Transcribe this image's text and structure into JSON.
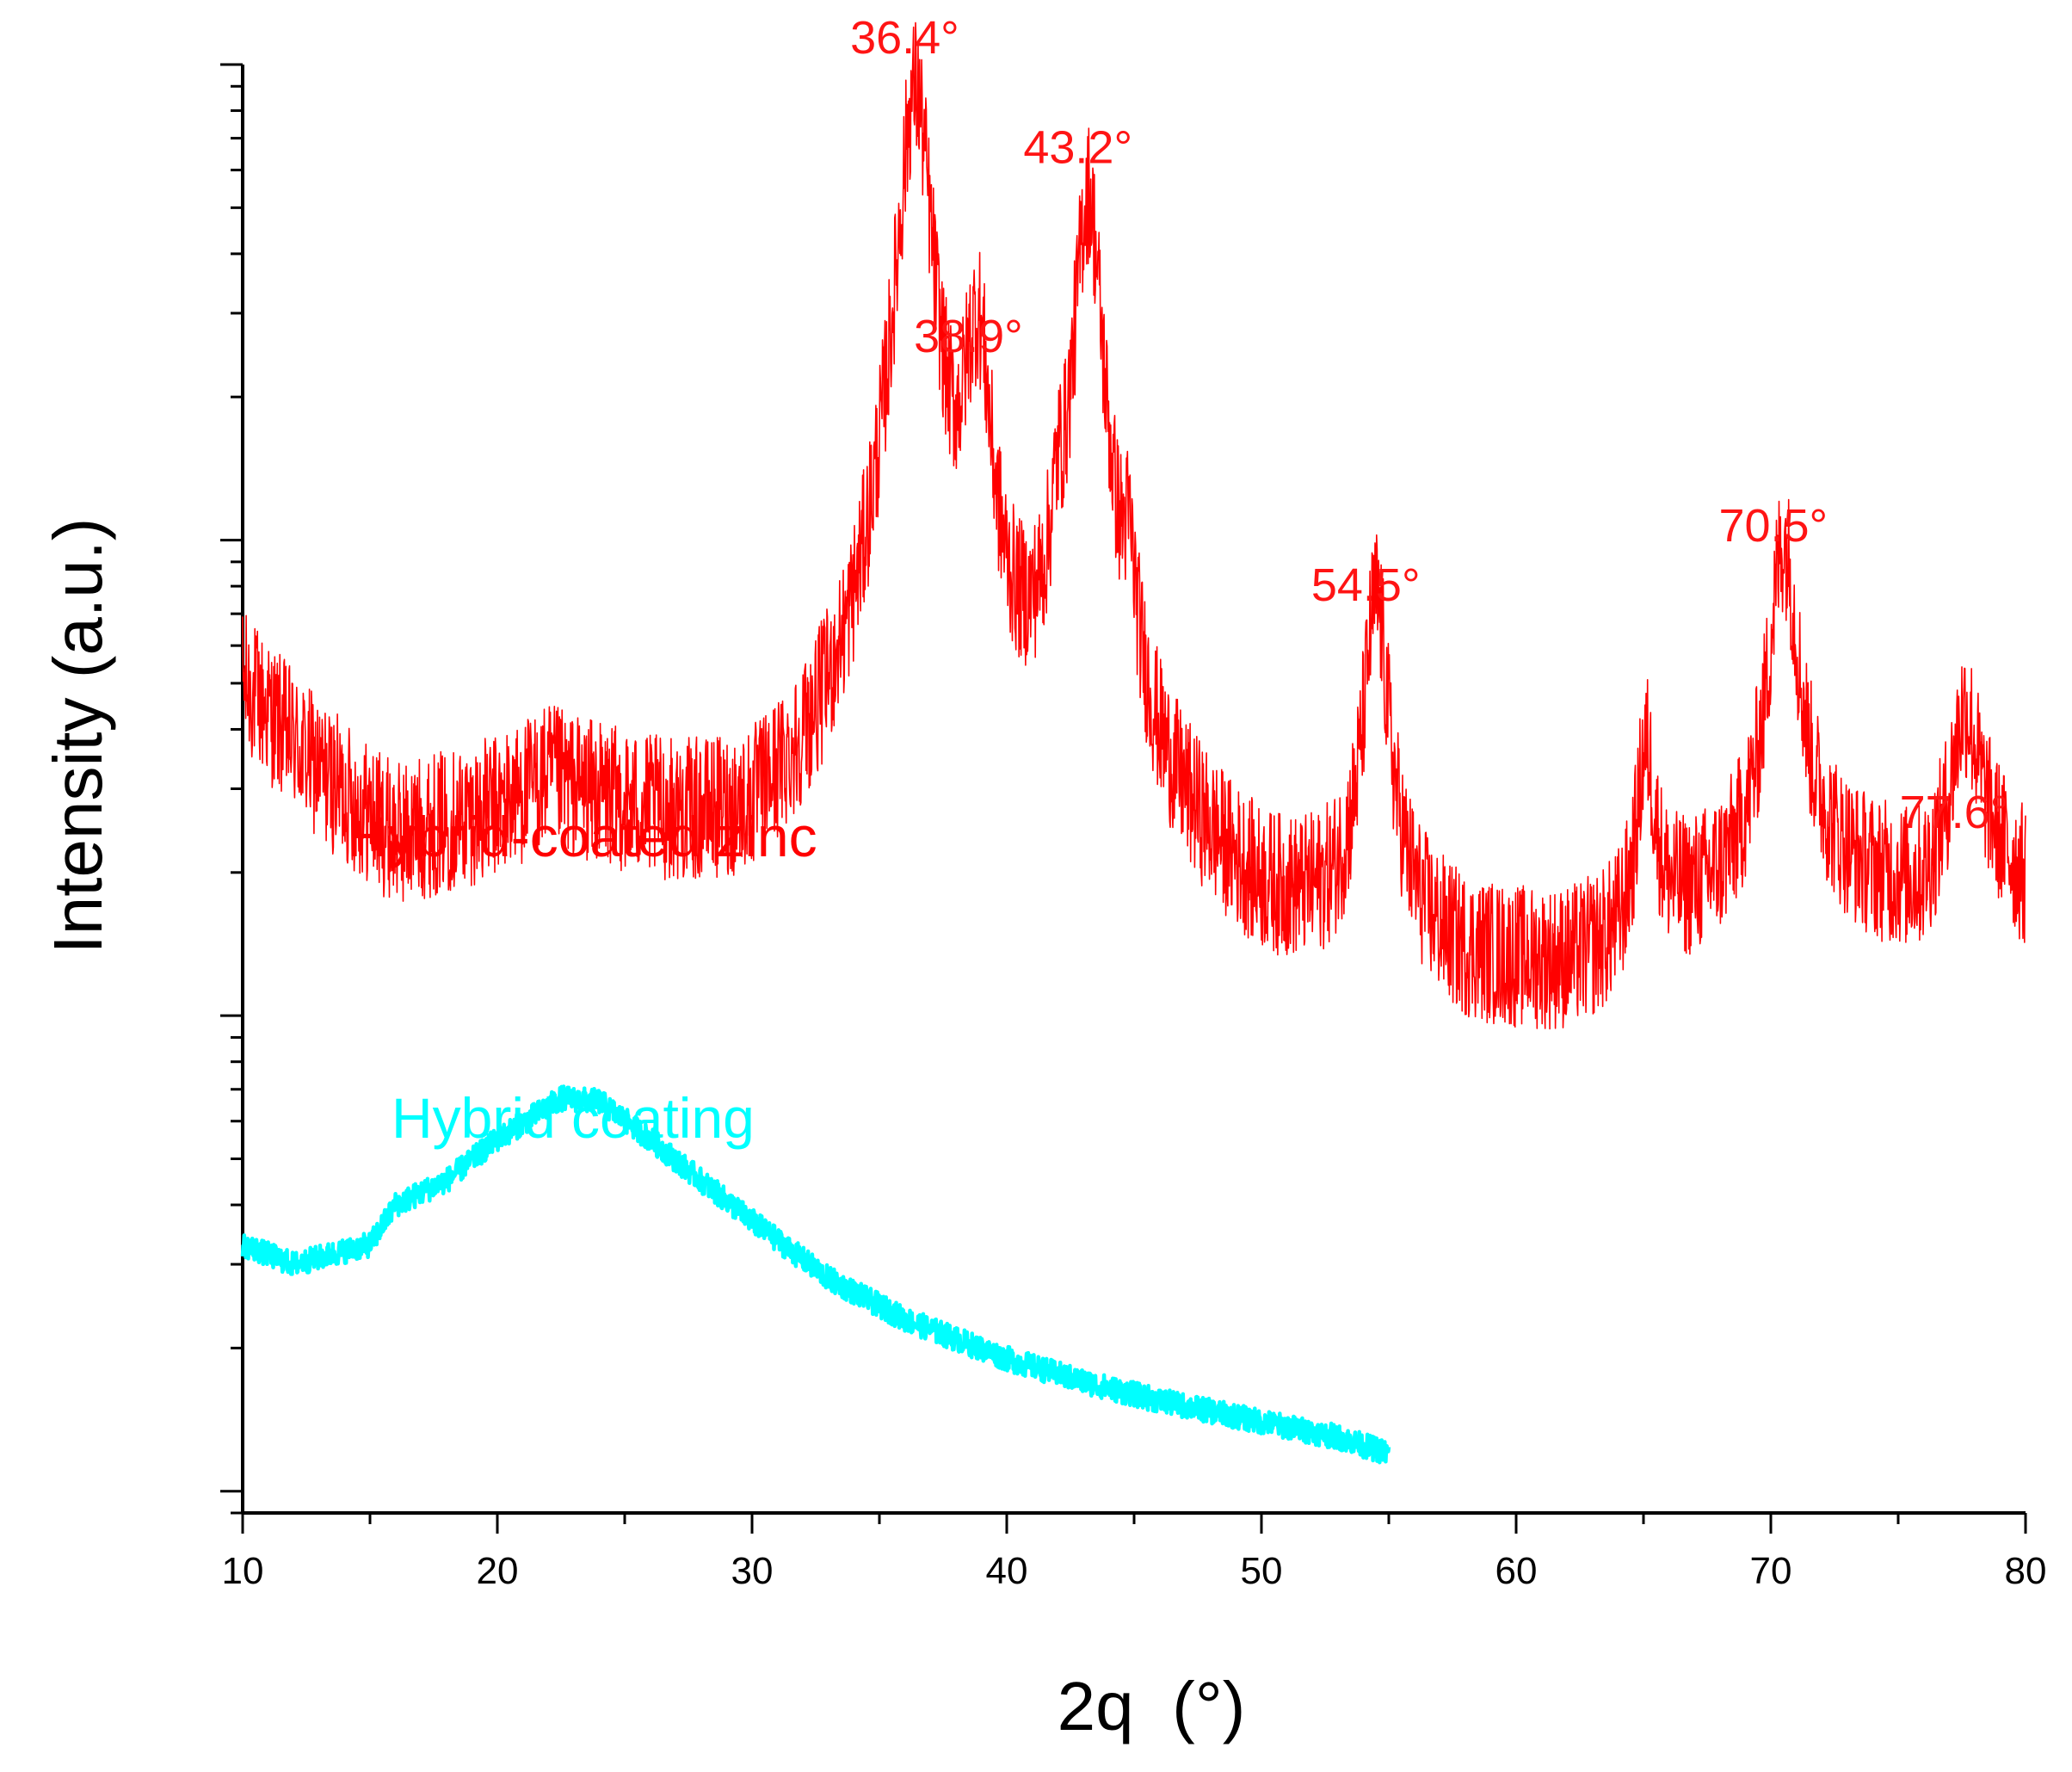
{
  "chart_data": {
    "type": "line",
    "title": "",
    "xlabel": "2q  (°)",
    "ylabel": "Intensity (a.u.)",
    "y_scale": "log",
    "xlim": [
      10,
      80
    ],
    "ylim": [
      0.09,
      100
    ],
    "x_ticks": [
      "10",
      "20",
      "30",
      "40",
      "50",
      "60",
      "70",
      "80"
    ],
    "y_tick_labels": "none",
    "series": [
      {
        "name": "Hybrid-coated zinc",
        "color": "#ff0000",
        "x_range": [
          10,
          80
        ],
        "baseline": [
          [
            10,
            5.0
          ],
          [
            13,
            3.2
          ],
          [
            16,
            2.3
          ],
          [
            20,
            2.6
          ],
          [
            22,
            3.0
          ],
          [
            26,
            2.4
          ],
          [
            30,
            2.0
          ],
          [
            34,
            2.5
          ],
          [
            35,
            2.9
          ],
          [
            38,
            3.2
          ],
          [
            40,
            2.8
          ],
          [
            44,
            2.6
          ],
          [
            46,
            1.9
          ],
          [
            50,
            1.4
          ],
          [
            55,
            1.35
          ],
          [
            58,
            1.15
          ],
          [
            62,
            1.15
          ],
          [
            64,
            1.25
          ],
          [
            66,
            1.5
          ],
          [
            69,
            1.7
          ],
          [
            72,
            1.9
          ],
          [
            76,
            1.7
          ],
          [
            78,
            2.5
          ],
          [
            80,
            1.8
          ]
        ],
        "peaks": [
          {
            "x": 36.4,
            "y": 85,
            "width": 0.6,
            "label": "36.4°"
          },
          {
            "x": 38.5,
            "y": 4.5,
            "width": 0.3,
            "label": ""
          },
          {
            "x": 38.9,
            "y": 20,
            "width": 0.45,
            "label": "38.9°"
          },
          {
            "x": 42.0,
            "y": 3.8,
            "width": 0.25,
            "label": ""
          },
          {
            "x": 43.2,
            "y": 50,
            "width": 0.5,
            "label": "43.2°"
          },
          {
            "x": 44.8,
            "y": 3.8,
            "width": 0.25,
            "label": ""
          },
          {
            "x": 54.5,
            "y": 6.0,
            "width": 0.45,
            "label": "54.5°"
          },
          {
            "x": 65.1,
            "y": 2.2,
            "width": 0.35,
            "label": ""
          },
          {
            "x": 70.5,
            "y": 8.0,
            "width": 0.55,
            "label": "70.5°"
          },
          {
            "x": 77.6,
            "y": 2.0,
            "width": 0.5,
            "label": "77.6°"
          }
        ],
        "noise": 0.35
      },
      {
        "name": "Hybrid coating",
        "color": "#00ffff",
        "x_range": [
          10,
          55
        ],
        "baseline": [
          [
            10,
            0.33
          ],
          [
            12,
            0.3
          ],
          [
            14,
            0.32
          ],
          [
            15,
            0.33
          ],
          [
            16,
            0.4
          ],
          [
            18,
            0.45
          ],
          [
            20,
            0.55
          ],
          [
            22.5,
            0.67
          ],
          [
            24,
            0.66
          ],
          [
            26,
            0.55
          ],
          [
            28,
            0.45
          ],
          [
            30,
            0.37
          ],
          [
            33,
            0.28
          ],
          [
            36,
            0.23
          ],
          [
            40,
            0.19
          ],
          [
            43,
            0.17
          ],
          [
            46,
            0.155
          ],
          [
            50,
            0.14
          ],
          [
            53,
            0.13
          ],
          [
            55,
            0.12
          ]
        ],
        "peaks": [],
        "noise": 0.06
      }
    ],
    "annotations": [
      "36.4°",
      "38.9°",
      "43.2°",
      "54.5°",
      "70.5°",
      "77.6°"
    ]
  },
  "labels": {
    "series1": "Hybrid-coated zinc",
    "series2": "Hybrid coating"
  },
  "colors": {
    "series1": "#ff0000",
    "series2": "#00ffff",
    "axis": "#000000"
  }
}
